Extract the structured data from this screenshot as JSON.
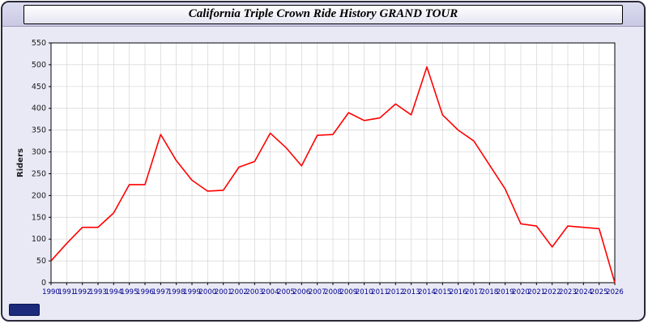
{
  "window": {
    "title": "California Triple Crown Ride History GRAND TOUR"
  },
  "colors": {
    "background": "#e9e9f6",
    "plot_background": "#ffffff",
    "grid": "#d4d4d4",
    "axis_border": "#000000",
    "line": "#ff0000",
    "x_label_color": "#00008b",
    "y_label_color": "#1a1a1a",
    "badge": "#1b2a7a"
  },
  "chart_data": {
    "type": "line",
    "title": "California Triple Crown Ride History GRAND TOUR",
    "xlabel": "",
    "ylabel": "Riders",
    "ylim": [
      0,
      550
    ],
    "ytick_step": 50,
    "grid": true,
    "legend_position": "none",
    "categories": [
      1990,
      1991,
      1992,
      1993,
      1994,
      1995,
      1996,
      1997,
      1998,
      1999,
      2000,
      2001,
      2002,
      2003,
      2004,
      2005,
      2006,
      2007,
      2008,
      2009,
      2010,
      2011,
      2012,
      2013,
      2014,
      2015,
      2016,
      2017,
      2018,
      2019,
      2020,
      2021,
      2022,
      2023,
      2024,
      2025,
      2026
    ],
    "series": [
      {
        "name": "Riders",
        "color": "#ff0000",
        "values": [
          50,
          90,
          127,
          127,
          160,
          225,
          225,
          340,
          280,
          235,
          210,
          212,
          265,
          278,
          343,
          310,
          268,
          338,
          340,
          390,
          372,
          378,
          410,
          385,
          495,
          385,
          350,
          325,
          270,
          215,
          135,
          130,
          82,
          130,
          127,
          124,
          0
        ]
      }
    ]
  }
}
